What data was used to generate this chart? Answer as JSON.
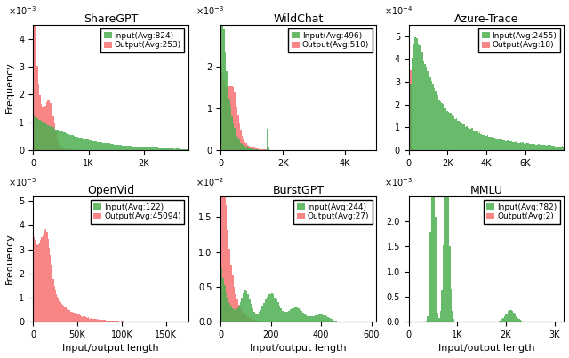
{
  "subplots": [
    {
      "title": "ShareGPT",
      "input_avg": 824,
      "output_avg": 253,
      "xlim": [
        0,
        2800
      ],
      "ylim": [
        0,
        0.0045
      ],
      "ytick_vals": [
        0,
        0.001,
        0.002,
        0.003,
        0.004
      ],
      "ytick_labels": [
        "0",
        "1",
        "2",
        "3",
        "4"
      ],
      "xtick_vals": [
        0,
        1000,
        2000
      ],
      "xtick_labels": [
        "0",
        "1K",
        "2K"
      ],
      "sci_exp": "-3",
      "ylabel": "Frequency",
      "row": 0,
      "bins": 120
    },
    {
      "title": "WildChat",
      "input_avg": 496,
      "output_avg": 510,
      "xlim": [
        0,
        5000
      ],
      "ylim": [
        0,
        0.003
      ],
      "ytick_vals": [
        0,
        0.001,
        0.002
      ],
      "ytick_labels": [
        "0",
        "1",
        "2"
      ],
      "xtick_vals": [
        0,
        2000,
        4000
      ],
      "xtick_labels": [
        "0",
        "2K",
        "4K"
      ],
      "sci_exp": "-3",
      "ylabel": "",
      "row": 0,
      "bins": 120
    },
    {
      "title": "Azure-Trace",
      "input_avg": 2455,
      "output_avg": 18,
      "xlim": [
        0,
        8000
      ],
      "ylim": [
        0,
        0.00055
      ],
      "ytick_vals": [
        0,
        0.0001,
        0.0002,
        0.0003,
        0.0004,
        0.0005
      ],
      "ytick_labels": [
        "0",
        "1",
        "2",
        "3",
        "4",
        "5"
      ],
      "xtick_vals": [
        0,
        2000,
        4000,
        6000
      ],
      "xtick_labels": [
        "0",
        "2K",
        "4K",
        "6K"
      ],
      "sci_exp": "-4",
      "ylabel": "",
      "row": 0,
      "bins": 120
    },
    {
      "title": "OpenVid",
      "input_avg": 122,
      "output_avg": 45094,
      "xlim": [
        0,
        175000
      ],
      "ylim": [
        0,
        5.2e-05
      ],
      "ytick_vals": [
        0,
        1e-05,
        2e-05,
        3e-05,
        4e-05,
        5e-05
      ],
      "ytick_labels": [
        "0",
        "1",
        "2",
        "3",
        "4",
        "5"
      ],
      "xtick_vals": [
        0,
        50000,
        100000,
        150000
      ],
      "xtick_labels": [
        "0",
        "50K",
        "100K",
        "150K"
      ],
      "sci_exp": "-5",
      "ylabel": "Frequency",
      "row": 1,
      "bins": 150
    },
    {
      "title": "BurstGPT",
      "input_avg": 244,
      "output_avg": 27,
      "xlim": [
        0,
        620
      ],
      "ylim": [
        0,
        0.018
      ],
      "ytick_vals": [
        0.0,
        0.005,
        0.01,
        0.015
      ],
      "ytick_labels": [
        "0.0",
        "0.5",
        "1.0",
        "1.5"
      ],
      "xtick_vals": [
        0,
        200,
        400,
        600
      ],
      "xtick_labels": [
        "0",
        "200",
        "400",
        "600"
      ],
      "sci_exp": "-2",
      "ylabel": "",
      "row": 1,
      "bins": 100
    },
    {
      "title": "MMLU",
      "input_avg": 782,
      "output_avg": 2,
      "xlim": [
        0,
        3200
      ],
      "ylim": [
        0,
        0.0025
      ],
      "ytick_vals": [
        0.0,
        0.0005,
        0.001,
        0.0015,
        0.002
      ],
      "ytick_labels": [
        "0.0",
        "0.5",
        "1.0",
        "1.5",
        "2.0"
      ],
      "xtick_vals": [
        0,
        1000,
        2000,
        3000
      ],
      "xtick_labels": [
        "0",
        "1K",
        "2K",
        "3K"
      ],
      "sci_exp": "-3",
      "ylabel": "",
      "row": 1,
      "bins": 120
    }
  ],
  "input_color": "#4caf50",
  "output_color": "#f87171",
  "xlabel": "Input/output length",
  "alpha": 0.85
}
